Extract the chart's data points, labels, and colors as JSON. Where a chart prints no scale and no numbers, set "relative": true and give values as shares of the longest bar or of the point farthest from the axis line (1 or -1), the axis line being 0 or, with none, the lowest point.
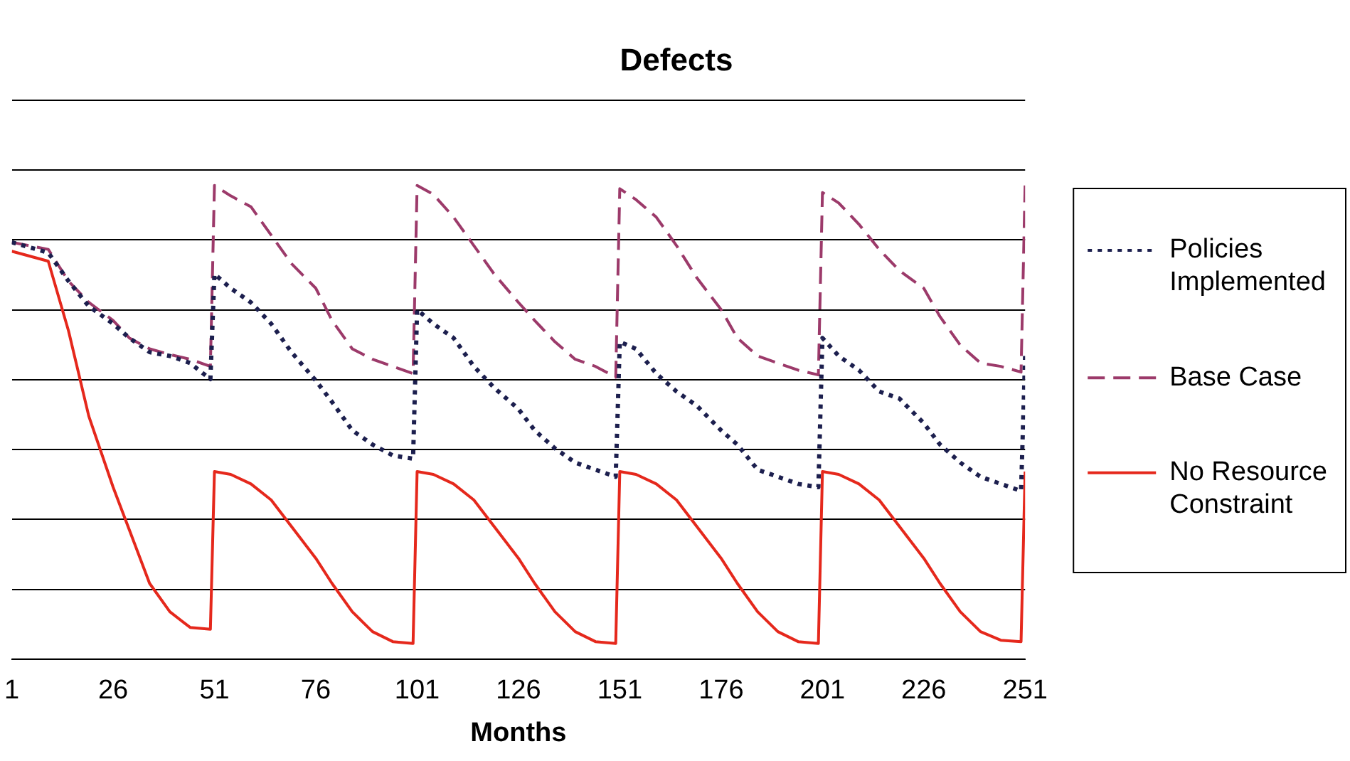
{
  "chart_data": {
    "type": "line",
    "title": "Defects",
    "xlabel": "Months",
    "relative": true,
    "x": [
      1,
      10,
      15,
      20,
      26,
      30,
      35,
      40,
      45,
      50,
      51,
      55,
      60,
      65,
      70,
      76,
      80,
      85,
      90,
      95,
      100,
      101,
      105,
      110,
      115,
      120,
      126,
      130,
      135,
      140,
      145,
      150,
      151,
      155,
      160,
      165,
      170,
      176,
      180,
      185,
      190,
      195,
      200,
      201,
      205,
      210,
      215,
      220,
      226,
      230,
      235,
      240,
      245,
      250,
      251
    ],
    "xlim": [
      1,
      251
    ],
    "xticks": [
      1,
      26,
      51,
      76,
      101,
      126,
      151,
      176,
      201,
      226,
      251
    ],
    "grid": "y",
    "legend": "right",
    "marker": "none",
    "series": [
      {
        "name": "Policies Implemented",
        "color": "#1c1f4e",
        "line_style": "dotted",
        "values": [
          0.88,
          0.858,
          0.798,
          0.745,
          0.708,
          0.678,
          0.648,
          0.64,
          0.625,
          0.591,
          0.813,
          0.783,
          0.753,
          0.708,
          0.648,
          0.588,
          0.543,
          0.483,
          0.453,
          0.43,
          0.423,
          0.738,
          0.708,
          0.678,
          0.618,
          0.573,
          0.528,
          0.483,
          0.445,
          0.415,
          0.4,
          0.385,
          0.67,
          0.655,
          0.603,
          0.565,
          0.535,
          0.483,
          0.453,
          0.4,
          0.385,
          0.37,
          0.363,
          0.678,
          0.64,
          0.61,
          0.565,
          0.55,
          0.498,
          0.453,
          0.415,
          0.385,
          0.37,
          0.355,
          0.64
        ]
      },
      {
        "name": "Base Case",
        "color": "#9c3a6a",
        "line_style": "dashed",
        "values": [
          0.88,
          0.865,
          0.798,
          0.753,
          0.715,
          0.678,
          0.655,
          0.643,
          0.633,
          0.618,
          1.0,
          0.978,
          0.955,
          0.895,
          0.835,
          0.783,
          0.715,
          0.655,
          0.633,
          0.618,
          0.603,
          1.0,
          0.981,
          0.933,
          0.873,
          0.813,
          0.753,
          0.715,
          0.67,
          0.633,
          0.618,
          0.595,
          0.993,
          0.97,
          0.933,
          0.873,
          0.805,
          0.738,
          0.678,
          0.64,
          0.625,
          0.61,
          0.6,
          0.985,
          0.963,
          0.918,
          0.865,
          0.82,
          0.783,
          0.723,
          0.663,
          0.625,
          0.618,
          0.606,
          1.0
        ]
      },
      {
        "name": "No Resource Constraint",
        "color": "#e5281c",
        "line_style": "solid",
        "values": [
          0.861,
          0.84,
          0.693,
          0.513,
          0.363,
          0.273,
          0.16,
          0.1,
          0.067,
          0.063,
          0.396,
          0.39,
          0.37,
          0.336,
          0.28,
          0.213,
          0.16,
          0.1,
          0.058,
          0.037,
          0.033,
          0.396,
          0.39,
          0.37,
          0.336,
          0.28,
          0.213,
          0.16,
          0.1,
          0.058,
          0.037,
          0.033,
          0.396,
          0.39,
          0.37,
          0.336,
          0.28,
          0.213,
          0.16,
          0.1,
          0.058,
          0.037,
          0.033,
          0.396,
          0.39,
          0.37,
          0.336,
          0.28,
          0.213,
          0.16,
          0.1,
          0.058,
          0.04,
          0.037,
          0.396
        ]
      }
    ]
  }
}
